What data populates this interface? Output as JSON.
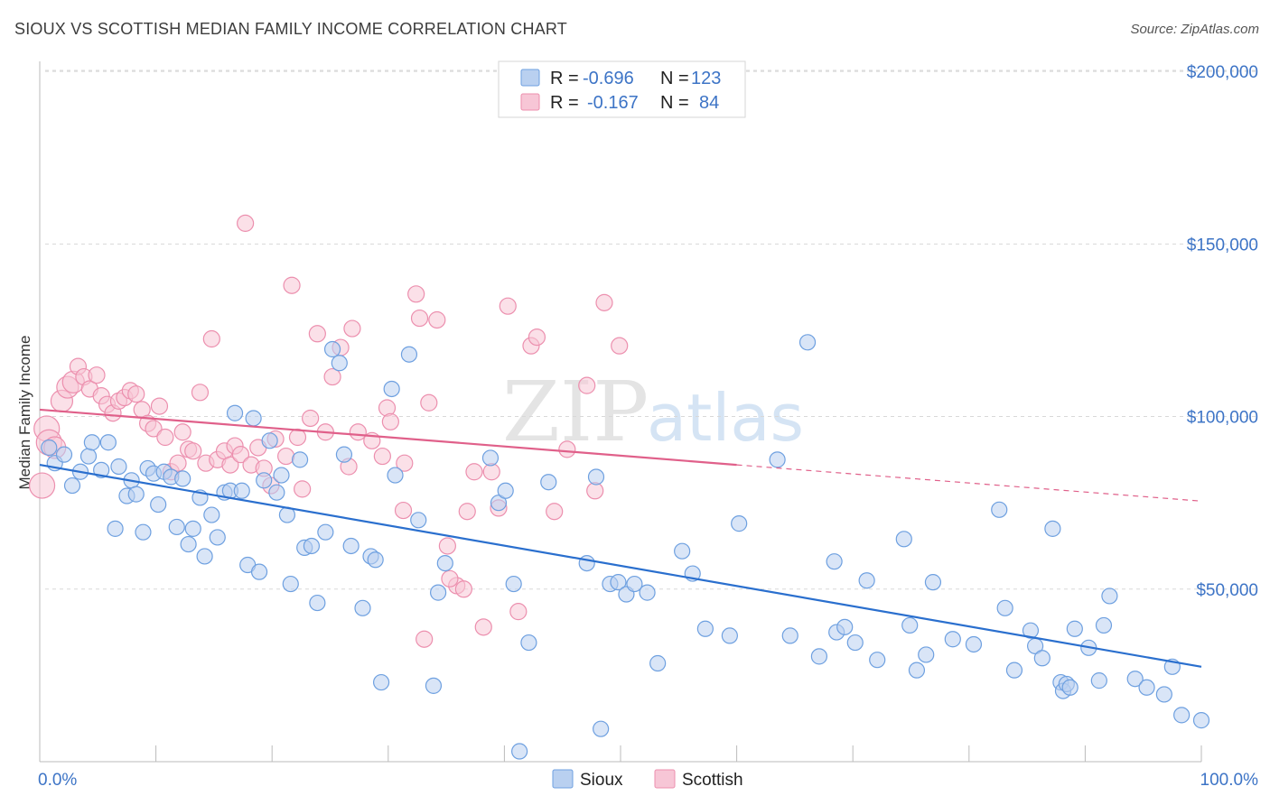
{
  "header": {
    "title": "SIOUX VS SCOTTISH MEDIAN FAMILY INCOME CORRELATION CHART",
    "source": "Source: ZipAtlas.com"
  },
  "watermark": {
    "zip": "ZIP",
    "atlas": "atlas"
  },
  "colors": {
    "sioux": "#6ea0e0",
    "sioux_fill": "#b9d0f0",
    "sioux_line": "#2a6fce",
    "scottish": "#ec8fae",
    "scottish_fill": "#f7c6d6",
    "scottish_line": "#e0608a",
    "axis_label": "#3d74c6",
    "grid": "#d8d8d8"
  },
  "legend": {
    "rows": [
      {
        "r_label": "R =",
        "r_value": "-0.696",
        "n_label": "N =",
        "n_value": "123"
      },
      {
        "r_label": "R =",
        "r_value": "-0.167",
        "n_label": "N =",
        "n_value": "84"
      }
    ]
  },
  "bottom_legend": {
    "sioux": "Sioux",
    "scottish": "Scottish"
  },
  "chart_data": {
    "type": "scatter",
    "title": "SIOUX VS SCOTTISH MEDIAN FAMILY INCOME CORRELATION CHART",
    "xlabel": "",
    "ylabel": "Median Family Income",
    "xlim": [
      0,
      100
    ],
    "ylim": [
      0,
      205000
    ],
    "x_tick_labels": [
      "0.0%",
      "100.0%"
    ],
    "y_ticks": [
      50000,
      100000,
      150000,
      200000
    ],
    "y_tick_labels": [
      "$50,000",
      "$100,000",
      "$150,000",
      "$200,000"
    ],
    "grid": true,
    "series": [
      {
        "name": "Sioux",
        "r": -0.696,
        "n": 123,
        "trend": {
          "x": [
            0,
            100
          ],
          "y": [
            86000,
            27500
          ]
        },
        "points": [
          [
            0.8,
            91000
          ],
          [
            1.3,
            86500
          ],
          [
            2.1,
            89000
          ],
          [
            2.8,
            80000
          ],
          [
            3.5,
            84000
          ],
          [
            4.2,
            88500
          ],
          [
            4.5,
            92500
          ],
          [
            5.3,
            84500
          ],
          [
            5.9,
            92500
          ],
          [
            6.5,
            67500
          ],
          [
            6.8,
            85500
          ],
          [
            7.5,
            77000
          ],
          [
            7.9,
            81500
          ],
          [
            8.3,
            77500
          ],
          [
            8.9,
            66500
          ],
          [
            9.3,
            85000
          ],
          [
            9.8,
            83500
          ],
          [
            10.2,
            74500
          ],
          [
            10.7,
            84000
          ],
          [
            11.3,
            82500
          ],
          [
            11.8,
            68000
          ],
          [
            12.3,
            82000
          ],
          [
            12.8,
            63000
          ],
          [
            13.2,
            67500
          ],
          [
            13.8,
            76500
          ],
          [
            14.2,
            59500
          ],
          [
            14.8,
            71500
          ],
          [
            15.3,
            65000
          ],
          [
            15.9,
            78000
          ],
          [
            16.4,
            78500
          ],
          [
            16.8,
            101000
          ],
          [
            17.4,
            78500
          ],
          [
            17.9,
            57000
          ],
          [
            18.4,
            99500
          ],
          [
            18.9,
            55000
          ],
          [
            19.3,
            81500
          ],
          [
            19.8,
            93000
          ],
          [
            20.4,
            78000
          ],
          [
            20.8,
            83000
          ],
          [
            21.3,
            71500
          ],
          [
            21.6,
            51500
          ],
          [
            22.4,
            87500
          ],
          [
            22.8,
            62000
          ],
          [
            23.4,
            62500
          ],
          [
            23.9,
            46000
          ],
          [
            24.6,
            66500
          ],
          [
            25.2,
            119500
          ],
          [
            25.8,
            115500
          ],
          [
            26.2,
            89000
          ],
          [
            26.8,
            62500
          ],
          [
            27.8,
            44500
          ],
          [
            28.5,
            59500
          ],
          [
            28.9,
            58500
          ],
          [
            29.4,
            23000
          ],
          [
            30.3,
            108000
          ],
          [
            30.6,
            83000
          ],
          [
            31.8,
            118000
          ],
          [
            32.6,
            70000
          ],
          [
            33.9,
            22000
          ],
          [
            34.3,
            49000
          ],
          [
            34.9,
            57500
          ],
          [
            38.8,
            88000
          ],
          [
            39.5,
            75000
          ],
          [
            40.1,
            78500
          ],
          [
            40.8,
            51500
          ],
          [
            41.3,
            3000
          ],
          [
            42.1,
            34500
          ],
          [
            43.8,
            81000
          ],
          [
            47.1,
            57500
          ],
          [
            47.9,
            82500
          ],
          [
            48.3,
            9500
          ],
          [
            49.1,
            51500
          ],
          [
            49.8,
            52000
          ],
          [
            50.5,
            48500
          ],
          [
            51.2,
            51500
          ],
          [
            52.3,
            49000
          ],
          [
            53.2,
            28500
          ],
          [
            55.3,
            61000
          ],
          [
            56.2,
            54500
          ],
          [
            57.3,
            38500
          ],
          [
            59.4,
            36500
          ],
          [
            60.2,
            69000
          ],
          [
            63.5,
            87500
          ],
          [
            64.6,
            36500
          ],
          [
            66.1,
            121500
          ],
          [
            67.1,
            30500
          ],
          [
            68.4,
            58000
          ],
          [
            68.6,
            37500
          ],
          [
            69.3,
            39000
          ],
          [
            70.2,
            34500
          ],
          [
            71.2,
            52500
          ],
          [
            72.1,
            29500
          ],
          [
            74.4,
            64500
          ],
          [
            74.9,
            39500
          ],
          [
            75.5,
            26500
          ],
          [
            76.3,
            31000
          ],
          [
            76.9,
            52000
          ],
          [
            78.6,
            35500
          ],
          [
            80.4,
            34000
          ],
          [
            82.6,
            73000
          ],
          [
            83.1,
            44500
          ],
          [
            83.9,
            26500
          ],
          [
            85.3,
            38000
          ],
          [
            85.7,
            33500
          ],
          [
            86.3,
            30000
          ],
          [
            87.2,
            67500
          ],
          [
            87.9,
            23000
          ],
          [
            88.1,
            20500
          ],
          [
            88.4,
            22500
          ],
          [
            88.7,
            21500
          ],
          [
            89.1,
            38500
          ],
          [
            90.3,
            33000
          ],
          [
            91.2,
            23500
          ],
          [
            91.6,
            39500
          ],
          [
            92.1,
            48000
          ],
          [
            94.3,
            24000
          ],
          [
            95.3,
            21500
          ],
          [
            96.8,
            19500
          ],
          [
            97.5,
            27500
          ],
          [
            98.3,
            13500
          ],
          [
            100,
            12000
          ]
        ]
      },
      {
        "name": "Scottish",
        "r": -0.167,
        "n": 84,
        "trend": {
          "x": [
            0,
            60
          ],
          "y": [
            102000,
            86000
          ],
          "dashed_to": {
            "x": 100,
            "y": 75500
          }
        },
        "points": [
          [
            0.2,
            80000
          ],
          [
            0.6,
            96500
          ],
          [
            0.8,
            92500
          ],
          [
            1.3,
            91000
          ],
          [
            1.9,
            104500
          ],
          [
            2.4,
            108500
          ],
          [
            2.9,
            110000
          ],
          [
            3.3,
            114500
          ],
          [
            3.8,
            111500
          ],
          [
            4.3,
            108000
          ],
          [
            4.9,
            112000
          ],
          [
            5.3,
            106000
          ],
          [
            5.8,
            103500
          ],
          [
            6.3,
            101000
          ],
          [
            6.8,
            104500
          ],
          [
            7.3,
            105500
          ],
          [
            7.8,
            107500
          ],
          [
            8.3,
            106500
          ],
          [
            8.8,
            102000
          ],
          [
            9.3,
            98000
          ],
          [
            9.8,
            96500
          ],
          [
            10.3,
            103000
          ],
          [
            10.8,
            94000
          ],
          [
            11.3,
            84000
          ],
          [
            11.9,
            86500
          ],
          [
            12.3,
            95500
          ],
          [
            12.8,
            90500
          ],
          [
            13.2,
            90000
          ],
          [
            13.8,
            107000
          ],
          [
            14.3,
            86500
          ],
          [
            14.8,
            122500
          ],
          [
            15.3,
            87500
          ],
          [
            15.9,
            90000
          ],
          [
            16.4,
            86000
          ],
          [
            16.8,
            91500
          ],
          [
            17.3,
            89000
          ],
          [
            17.7,
            156000
          ],
          [
            18.2,
            86000
          ],
          [
            18.8,
            91000
          ],
          [
            19.3,
            85000
          ],
          [
            19.9,
            80000
          ],
          [
            20.3,
            93500
          ],
          [
            21.2,
            88500
          ],
          [
            21.7,
            138000
          ],
          [
            22.2,
            94000
          ],
          [
            22.6,
            79000
          ],
          [
            23.3,
            99500
          ],
          [
            23.9,
            124000
          ],
          [
            24.6,
            95500
          ],
          [
            25.2,
            111500
          ],
          [
            25.9,
            120000
          ],
          [
            26.6,
            85500
          ],
          [
            26.9,
            125500
          ],
          [
            27.4,
            95500
          ],
          [
            28.6,
            93000
          ],
          [
            29.5,
            88500
          ],
          [
            29.9,
            102500
          ],
          [
            30.2,
            98500
          ],
          [
            31.4,
            86500
          ],
          [
            32.4,
            135500
          ],
          [
            32.7,
            128500
          ],
          [
            33.5,
            104000
          ],
          [
            34.2,
            128000
          ],
          [
            35.1,
            62500
          ],
          [
            35.9,
            51000
          ],
          [
            36.5,
            50000
          ],
          [
            36.8,
            72500
          ],
          [
            37.4,
            84000
          ],
          [
            38.2,
            39000
          ],
          [
            38.9,
            84000
          ],
          [
            39.5,
            73500
          ],
          [
            40.3,
            132000
          ],
          [
            41.2,
            43500
          ],
          [
            42.3,
            120500
          ],
          [
            42.8,
            123000
          ],
          [
            44.3,
            72500
          ],
          [
            45.4,
            90500
          ],
          [
            47.1,
            109000
          ],
          [
            47.8,
            78500
          ],
          [
            48.6,
            133000
          ],
          [
            49.9,
            120500
          ],
          [
            33.1,
            35500
          ],
          [
            35.3,
            53000
          ],
          [
            31.3,
            72800
          ]
        ]
      }
    ]
  }
}
